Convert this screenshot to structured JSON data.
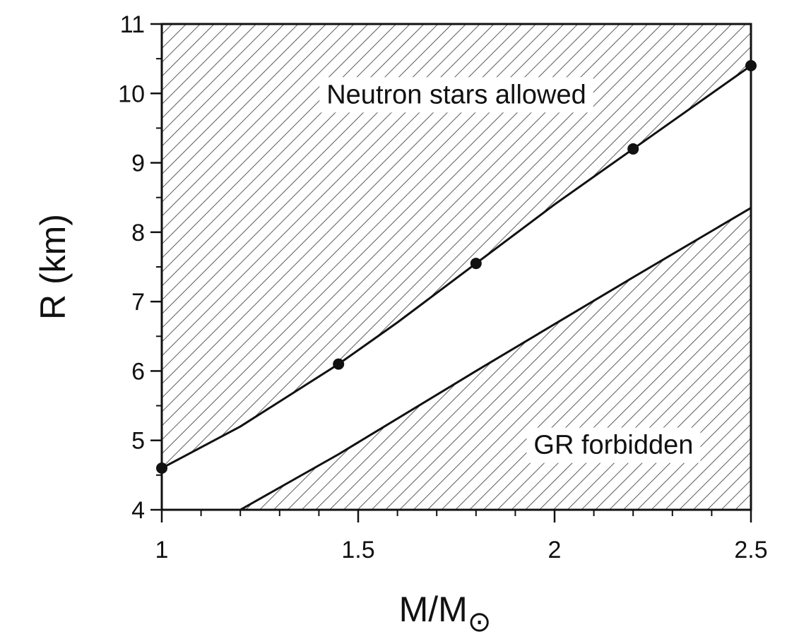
{
  "chart_data": {
    "type": "line",
    "xlabel": "M/M",
    "xlabel_subscript": "⊙",
    "ylabel": "R (km)",
    "xlim": [
      1,
      2.5
    ],
    "ylim": [
      4,
      11
    ],
    "x_ticks": [
      "1",
      "1.5",
      "2",
      "2.5"
    ],
    "y_ticks": [
      "4",
      "5",
      "6",
      "7",
      "8",
      "9",
      "10",
      "11"
    ],
    "series": [
      {
        "x": [
          1.0,
          1.2,
          1.45,
          1.6,
          1.8,
          2.0,
          2.2,
          2.35,
          2.5
        ],
        "y": [
          4.6,
          5.2,
          6.1,
          6.7,
          7.55,
          8.4,
          9.2,
          9.8,
          10.4
        ]
      },
      {
        "x": [
          1.2,
          1.45,
          1.8,
          2.2,
          2.5
        ],
        "y": [
          4.0,
          4.8,
          6.0,
          7.35,
          8.35
        ]
      }
    ],
    "markers": {
      "x": [
        1.0,
        1.45,
        1.8,
        2.2,
        2.5
      ],
      "y": [
        4.6,
        6.1,
        7.55,
        9.2,
        10.4
      ]
    },
    "annotations": [
      {
        "text": "Neutron stars allowed",
        "x": 1.75,
        "y": 10.0
      },
      {
        "text": "GR forbidden",
        "x": 2.15,
        "y": 4.95
      }
    ],
    "hatched_regions": [
      "above upper curve",
      "below lower curve"
    ],
    "grid": false,
    "colors": {
      "line": "#111111",
      "hatch": "#333333",
      "background": "#ffffff"
    }
  }
}
